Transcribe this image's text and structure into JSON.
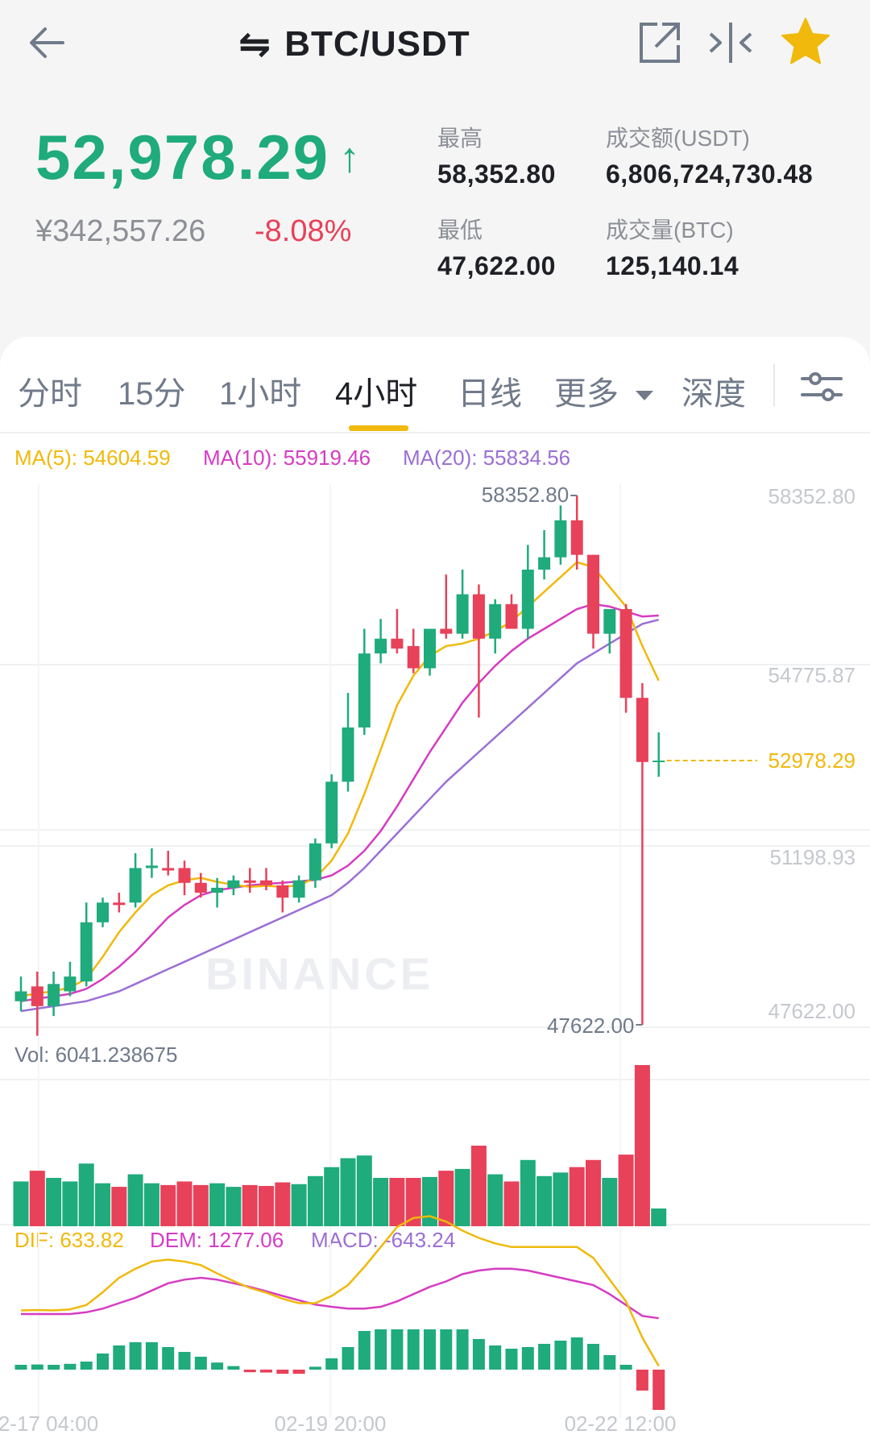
{
  "header": {
    "title": "BTC/USDT",
    "swap_symbol": "⇋"
  },
  "ticker": {
    "last_price": "52,978.29",
    "direction_arrow": "↑",
    "cny_price": "¥342,557.26",
    "change_percent": "-8.08%",
    "stats": {
      "high_label": "最高",
      "high_value": "58,352.80",
      "low_label": "最低",
      "low_value": "47,622.00",
      "turnover_label": "成交额(USDT)",
      "turnover_value": "6,806,724,730.48",
      "volume_label": "成交量(BTC)",
      "volume_value": "125,140.14"
    }
  },
  "tabs": {
    "time_sharing": "分时",
    "m15": "15分",
    "h1": "1小时",
    "h4": "4小时",
    "daily": "日线",
    "more": "更多",
    "depth": "深度",
    "active": "4小时"
  },
  "indicators": {
    "ma5": "MA(5): 54604.59",
    "ma10": "MA(10): 55919.46",
    "ma20": "MA(20): 55834.56",
    "vol": "Vol: 6041.238675",
    "dif": "DIF: 633.82",
    "dem": "DEM: 1277.06",
    "macd": "MACD: -643.24"
  },
  "watermark": "BINANCE",
  "price_axis": [
    "58352.80",
    "54775.87",
    "51198.93",
    "47622.00"
  ],
  "time_axis": [
    "2-17 04:00",
    "02-19 20:00",
    "02-22 12:00"
  ],
  "chart_data": {
    "type": "candlestick",
    "high_label": "58352.80",
    "low_label": "47622.00",
    "current_price_label": "52978.29",
    "candles": [
      {
        "o": 48100,
        "h": 48600,
        "l": 47900,
        "c": 48300
      },
      {
        "o": 48400,
        "h": 48700,
        "l": 47400,
        "c": 48000
      },
      {
        "o": 48000,
        "h": 48700,
        "l": 47800,
        "c": 48450
      },
      {
        "o": 48300,
        "h": 48900,
        "l": 48200,
        "c": 48600
      },
      {
        "o": 48500,
        "h": 50100,
        "l": 48400,
        "c": 49700
      },
      {
        "o": 49700,
        "h": 50200,
        "l": 49600,
        "c": 50100
      },
      {
        "o": 50100,
        "h": 50300,
        "l": 49900,
        "c": 50050
      },
      {
        "o": 50100,
        "h": 51100,
        "l": 50000,
        "c": 50800
      },
      {
        "o": 50800,
        "h": 51200,
        "l": 50600,
        "c": 50850
      },
      {
        "o": 50800,
        "h": 51150,
        "l": 50650,
        "c": 50750
      },
      {
        "o": 50800,
        "h": 50950,
        "l": 50250,
        "c": 50500
      },
      {
        "o": 50500,
        "h": 50700,
        "l": 50200,
        "c": 50300
      },
      {
        "o": 50300,
        "h": 50600,
        "l": 50000,
        "c": 50400
      },
      {
        "o": 50400,
        "h": 50650,
        "l": 50250,
        "c": 50550
      },
      {
        "o": 50550,
        "h": 50800,
        "l": 50300,
        "c": 50500
      },
      {
        "o": 50550,
        "h": 50800,
        "l": 50350,
        "c": 50450
      },
      {
        "o": 50450,
        "h": 50550,
        "l": 49900,
        "c": 50200
      },
      {
        "o": 50200,
        "h": 50650,
        "l": 50100,
        "c": 50550
      },
      {
        "o": 50550,
        "h": 51400,
        "l": 50400,
        "c": 51300
      },
      {
        "o": 51300,
        "h": 52700,
        "l": 51200,
        "c": 52550
      },
      {
        "o": 52550,
        "h": 54350,
        "l": 52350,
        "c": 53650
      },
      {
        "o": 53650,
        "h": 55650,
        "l": 53500,
        "c": 55150
      },
      {
        "o": 55150,
        "h": 55850,
        "l": 54950,
        "c": 55450
      },
      {
        "o": 55450,
        "h": 56050,
        "l": 55150,
        "c": 55250
      },
      {
        "o": 55300,
        "h": 55650,
        "l": 54750,
        "c": 54850
      },
      {
        "o": 54850,
        "h": 55650,
        "l": 54700,
        "c": 55650
      },
      {
        "o": 55650,
        "h": 56750,
        "l": 55450,
        "c": 55550
      },
      {
        "o": 55550,
        "h": 56850,
        "l": 55450,
        "c": 56350
      },
      {
        "o": 56350,
        "h": 56550,
        "l": 53850,
        "c": 55450
      },
      {
        "o": 55450,
        "h": 56250,
        "l": 55150,
        "c": 56150
      },
      {
        "o": 56150,
        "h": 56350,
        "l": 55650,
        "c": 55650
      },
      {
        "o": 55650,
        "h": 57350,
        "l": 55450,
        "c": 56850
      },
      {
        "o": 56850,
        "h": 57650,
        "l": 56650,
        "c": 57100
      },
      {
        "o": 57100,
        "h": 58150,
        "l": 56950,
        "c": 57850
      },
      {
        "o": 57850,
        "h": 58352.8,
        "l": 56850,
        "c": 57150
      },
      {
        "o": 57150,
        "h": 57150,
        "l": 55250,
        "c": 55550
      },
      {
        "o": 55550,
        "h": 56050,
        "l": 55150,
        "c": 56050
      },
      {
        "o": 56050,
        "h": 56150,
        "l": 53950,
        "c": 54250
      },
      {
        "o": 54250,
        "h": 54550,
        "l": 47622,
        "c": 52950
      },
      {
        "o": 52950,
        "h": 53550,
        "l": 52650,
        "c": 52978.29
      }
    ],
    "ma5": [
      48200,
      48260,
      48300,
      48380,
      48550,
      49000,
      49500,
      49900,
      50250,
      50450,
      50550,
      50600,
      50520,
      50460,
      50420,
      50440,
      50420,
      50450,
      50600,
      50950,
      51500,
      52300,
      53200,
      54100,
      54700,
      55100,
      55300,
      55350,
      55450,
      55600,
      55800,
      56100,
      56400,
      56700,
      57000,
      56900,
      56500,
      56100,
      55300,
      54600
    ],
    "ma10": [
      48100,
      48150,
      48200,
      48250,
      48350,
      48550,
      48800,
      49100,
      49450,
      49800,
      50050,
      50250,
      50350,
      50400,
      50450,
      50480,
      50500,
      50530,
      50560,
      50650,
      50850,
      51150,
      51550,
      52050,
      52600,
      53150,
      53650,
      54150,
      54550,
      54900,
      55200,
      55450,
      55650,
      55850,
      56050,
      56150,
      56100,
      56000,
      55900,
      55919
    ],
    "ma20": [
      47900,
      47950,
      48000,
      48050,
      48100,
      48200,
      48300,
      48450,
      48600,
      48750,
      48900,
      49050,
      49200,
      49350,
      49500,
      49650,
      49800,
      49950,
      50100,
      50250,
      50500,
      50800,
      51150,
      51500,
      51850,
      52200,
      52550,
      52850,
      53150,
      53450,
      53750,
      54050,
      54350,
      54650,
      54950,
      55150,
      55350,
      55550,
      55750,
      55834
    ]
  }
}
